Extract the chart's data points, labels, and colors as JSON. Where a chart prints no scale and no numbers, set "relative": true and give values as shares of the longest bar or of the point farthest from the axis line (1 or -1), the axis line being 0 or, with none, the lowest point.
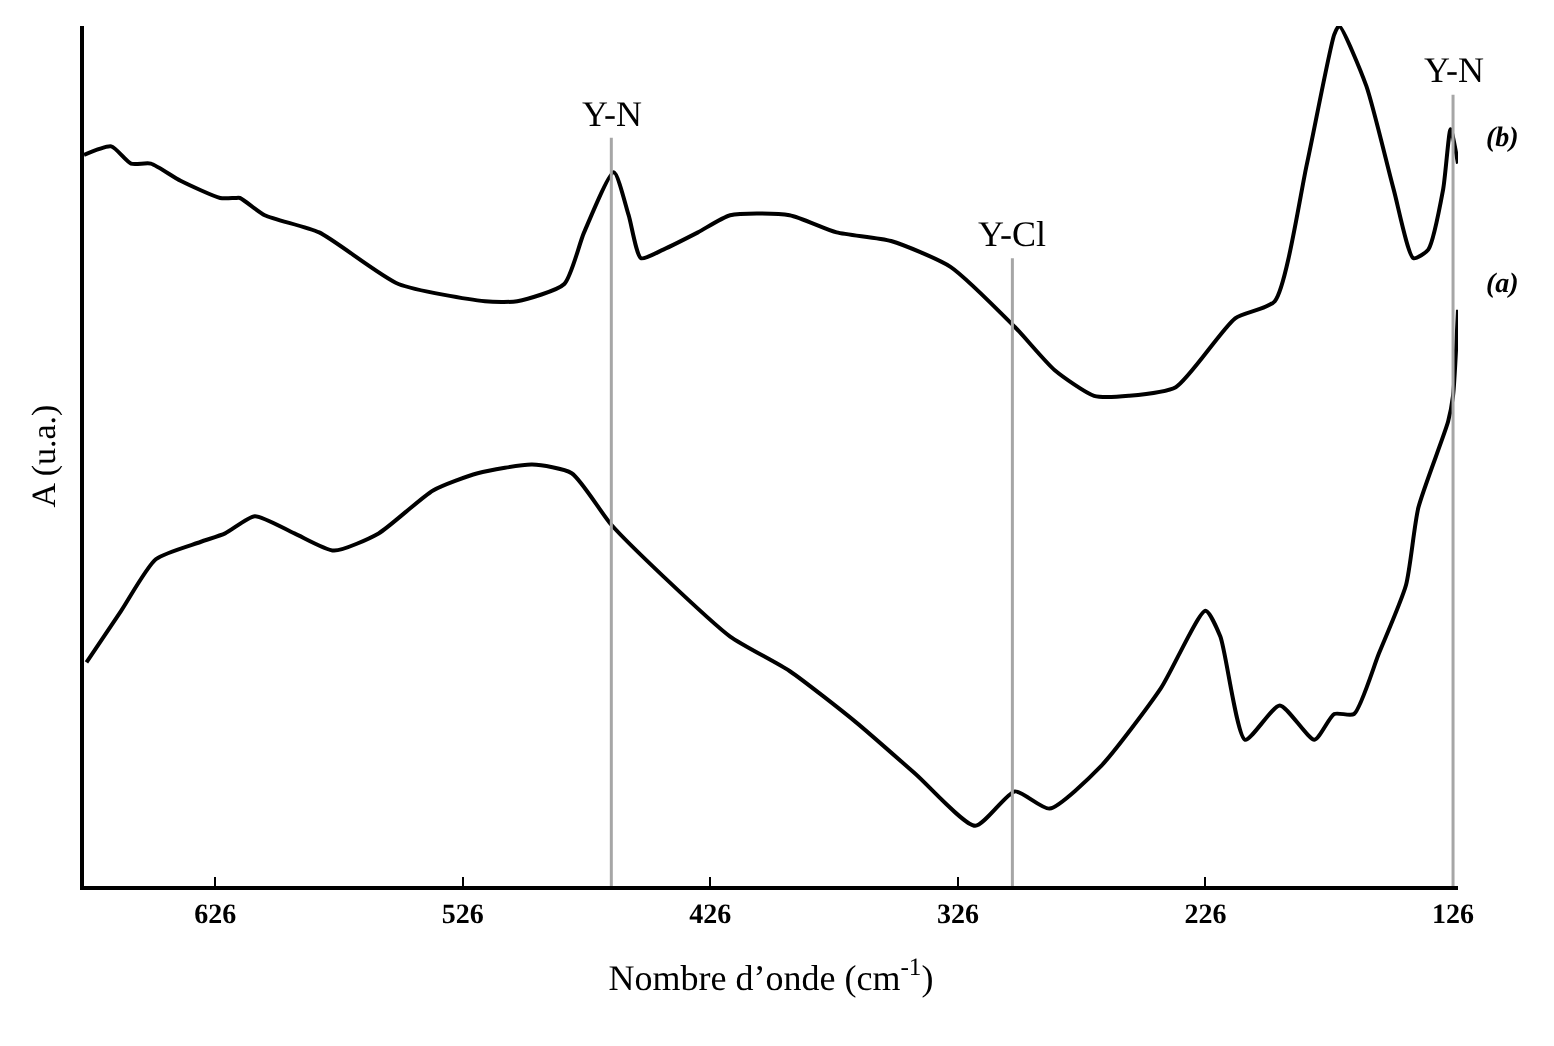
{
  "chart_data": {
    "type": "line",
    "xlabel": "Nombre d’onde (cm$^{-1}$)",
    "ylabel": "A (u.a.)",
    "relative": true,
    "legend": false,
    "grid": false,
    "xlim": [
      679,
      124
    ],
    "xticks": [
      626,
      526,
      426,
      326,
      226,
      126
    ],
    "series": [
      {
        "name": "(b)",
        "color": "#000000",
        "x": [
          679,
          668,
          660,
          652,
          640,
          624,
          618,
          616,
          606,
          584,
          552,
          517,
          504,
          485,
          477,
          465,
          459,
          454,
          445,
          431,
          418,
          394,
          375,
          353,
          329,
          303,
          287,
          271,
          257,
          238,
          214,
          198,
          185,
          174,
          172,
          161,
          150,
          142,
          136,
          130,
          127,
          124
        ],
        "values": [
          0.85,
          0.86,
          0.84,
          0.84,
          0.82,
          0.8,
          0.8,
          0.8,
          0.78,
          0.76,
          0.7,
          0.68,
          0.68,
          0.7,
          0.76,
          0.83,
          0.78,
          0.73,
          0.74,
          0.76,
          0.78,
          0.78,
          0.76,
          0.75,
          0.72,
          0.65,
          0.6,
          0.57,
          0.57,
          0.58,
          0.66,
          0.68,
          0.84,
          0.99,
          1,
          0.93,
          0.81,
          0.73,
          0.74,
          0.81,
          0.88,
          0.84
        ]
      },
      {
        "name": "(a)",
        "color": "#000000",
        "x": [
          678,
          664,
          650,
          632,
          622,
          610,
          594,
          578,
          560,
          538,
          520,
          498,
          482,
          466,
          445,
          418,
          394,
          367,
          343,
          319,
          303,
          289,
          268,
          244,
          226,
          220,
          210,
          196,
          182,
          174,
          166,
          156,
          145,
          140,
          128,
          126,
          124
        ],
        "values": [
          0.26,
          0.32,
          0.38,
          0.4,
          0.41,
          0.43,
          0.41,
          0.39,
          0.41,
          0.46,
          0.48,
          0.49,
          0.48,
          0.42,
          0.36,
          0.29,
          0.25,
          0.19,
          0.13,
          0.07,
          0.11,
          0.09,
          0.14,
          0.23,
          0.32,
          0.29,
          0.17,
          0.21,
          0.17,
          0.2,
          0.2,
          0.27,
          0.35,
          0.44,
          0.54,
          0.57,
          0.67
        ]
      }
    ],
    "ref_lines": [
      {
        "axis": "x",
        "value": 466,
        "label": "Y-N",
        "color": "#a6a6a6"
      },
      {
        "axis": "x",
        "value": 304,
        "label": "Y-Cl",
        "color": "#a6a6a6"
      },
      {
        "axis": "x",
        "value": 126,
        "label": "Y-N",
        "color": "#a6a6a6"
      }
    ]
  }
}
